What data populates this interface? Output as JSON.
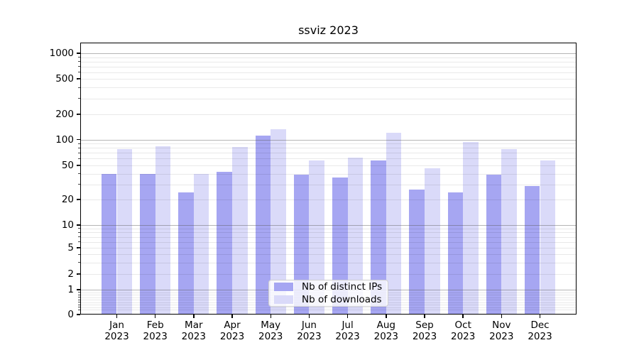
{
  "chart_data": {
    "type": "bar",
    "title": "ssviz 2023",
    "months": [
      "Jan",
      "Feb",
      "Mar",
      "Apr",
      "May",
      "Jun",
      "Jul",
      "Aug",
      "Sep",
      "Oct",
      "Nov",
      "Dec"
    ],
    "year": "2023",
    "series": [
      {
        "name": "Nb of distinct IPs",
        "color": "#a6a6f2",
        "values": [
          40,
          40,
          24,
          42,
          112,
          39,
          36,
          57,
          26,
          24,
          39,
          29
        ]
      },
      {
        "name": "Nb of downloads",
        "color": "#dadaf9",
        "values": [
          77,
          84,
          40,
          82,
          132,
          57,
          62,
          120,
          46,
          93,
          77,
          57
        ]
      }
    ],
    "xlabel": "",
    "ylabel": "",
    "yscale": "symlog",
    "y_ticks": [
      0,
      1,
      2,
      5,
      10,
      20,
      50,
      100,
      200,
      500,
      1000
    ],
    "ylim": [
      0,
      1300
    ],
    "grid": true,
    "legend_position": "lower center",
    "colors": {
      "background": "#ffffff",
      "grid_major": "#bdbdbd",
      "grid_minor": "#e9e9e9",
      "axis": "#000000"
    }
  }
}
